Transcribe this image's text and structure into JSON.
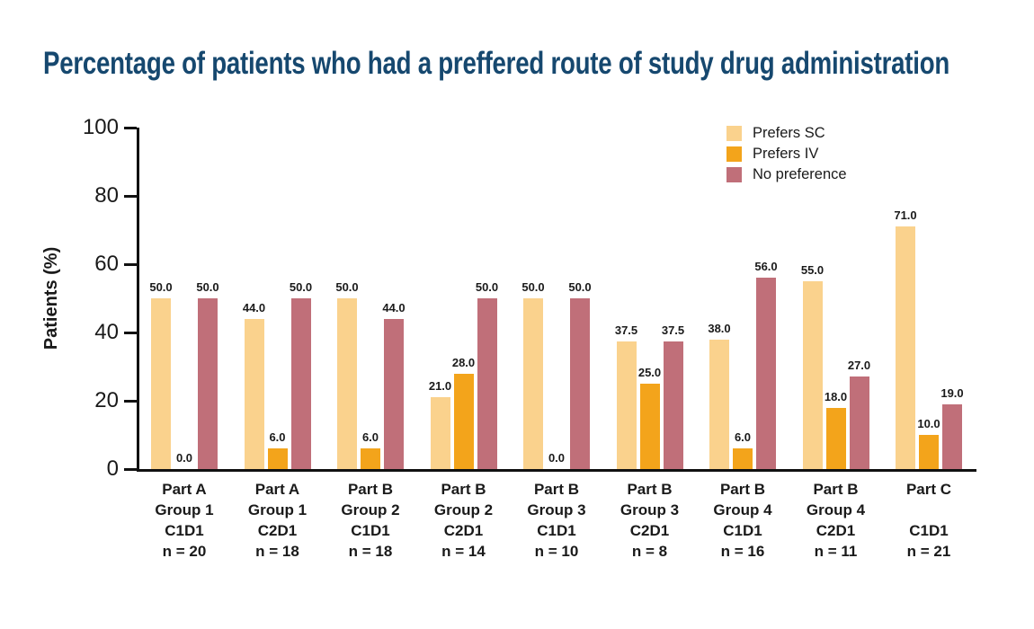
{
  "page": {
    "background": "#ffffff"
  },
  "title": {
    "text": "Percentage of patients who had a preffered route of study drug administration",
    "color": "#16486F"
  },
  "chart_data": {
    "type": "bar",
    "title": "Percentage of patients who had a preffered route of study drug administration",
    "xlabel": "",
    "ylabel": "Patients (%)",
    "ylim": [
      0,
      100
    ],
    "yticks": [
      0,
      20,
      40,
      60,
      80,
      100
    ],
    "grid": false,
    "legend_position": "top-right",
    "value_labels": "shown above each bar, one decimal",
    "axis_color": "#111111",
    "text_color": "#1a1a1a",
    "categories": [
      [
        "Part A",
        "Group 1",
        "C1D1",
        "n = 20"
      ],
      [
        "Part A",
        "Group 1",
        "C2D1",
        "n = 18"
      ],
      [
        "Part B",
        "Group 2",
        "C1D1",
        "n = 18"
      ],
      [
        "Part B",
        "Group 2",
        "C2D1",
        "n = 14"
      ],
      [
        "Part B",
        "Group 3",
        "C1D1",
        "n = 10"
      ],
      [
        "Part B",
        "Group 3",
        "C2D1",
        "n = 8"
      ],
      [
        "Part B",
        "Group 4",
        "C1D1",
        "n = 16"
      ],
      [
        "Part B",
        "Group 4",
        "C2D1",
        "n = 11"
      ],
      [
        "Part C",
        "",
        "C1D1",
        "n = 21"
      ]
    ],
    "series": [
      {
        "name": "Prefers SC",
        "color": "#FAD28D",
        "values": [
          50,
          44,
          50,
          21,
          50,
          37.5,
          38,
          55,
          71
        ]
      },
      {
        "name": "Prefers IV",
        "color": "#F3A41B",
        "values": [
          0,
          6,
          6,
          28,
          0,
          25,
          6,
          18,
          10
        ]
      },
      {
        "name": "No preference",
        "color": "#C06F79",
        "values": [
          50,
          50,
          44,
          50,
          50,
          37.5,
          56,
          27,
          19
        ]
      }
    ]
  }
}
